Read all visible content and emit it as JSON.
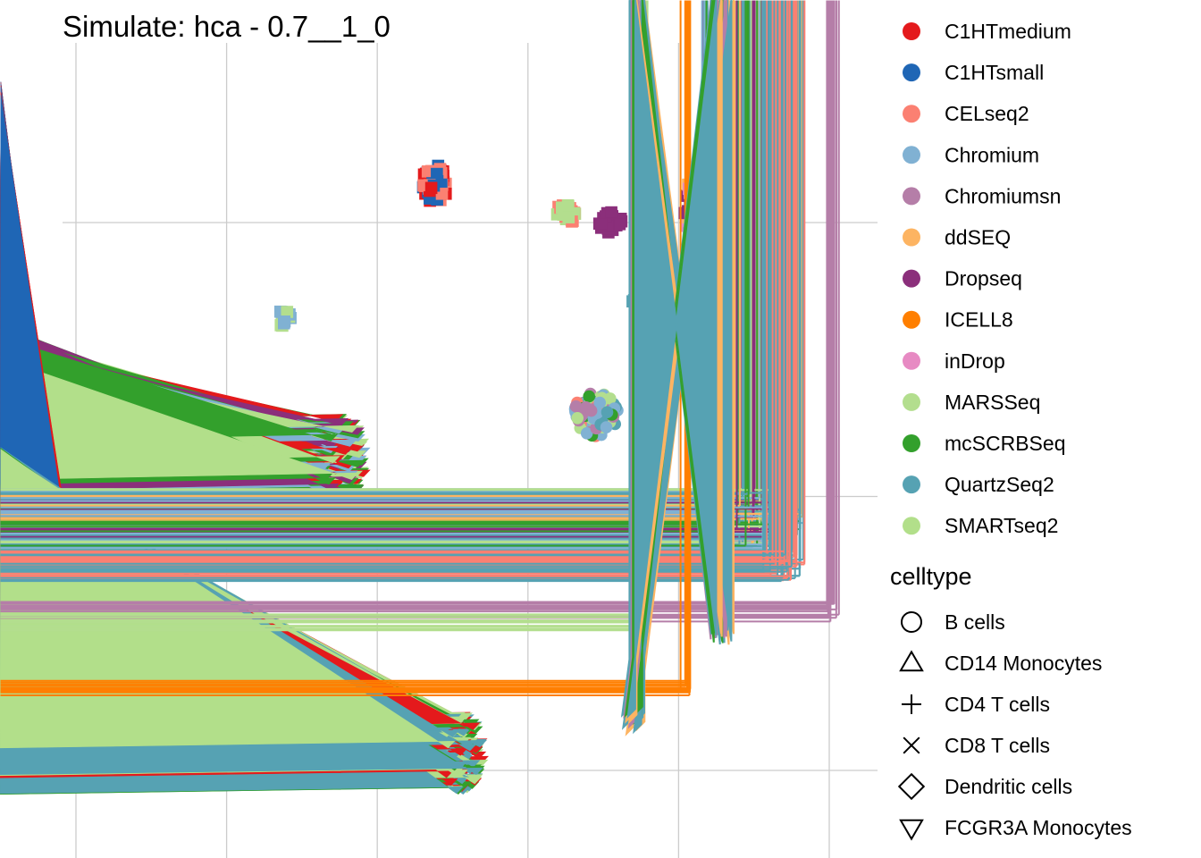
{
  "chart_data": {
    "type": "scatter",
    "title": "Simulate: hca - 0.7__1_0",
    "xlabel": "",
    "ylabel": "",
    "grid": true,
    "axis_ticks_visible": false,
    "xlim": [
      -0.1,
      5.3
    ],
    "ylim": [
      -0.3,
      2.65
    ],
    "x_gridlines": [
      0,
      1,
      2,
      3,
      4,
      5
    ],
    "y_gridlines": [
      0,
      1,
      2
    ],
    "legend_position": "right",
    "color_legend": {
      "title": "",
      "entries": [
        {
          "name": "C1HTmedium",
          "color": "#E41A1C"
        },
        {
          "name": "C1HTsmall",
          "color": "#1F66B5"
        },
        {
          "name": "CELseq2",
          "color": "#FB8072"
        },
        {
          "name": "Chromium",
          "color": "#80B1D3"
        },
        {
          "name": "Chromiumsn",
          "color": "#B57EA8"
        },
        {
          "name": "ddSEQ",
          "color": "#FDB462"
        },
        {
          "name": "Dropseq",
          "color": "#8B2F7B"
        },
        {
          "name": "ICELL8",
          "color": "#FF7F00"
        },
        {
          "name": "inDrop",
          "color": "#E78AC3"
        },
        {
          "name": "MARSSeq",
          "color": "#B3DE8E"
        },
        {
          "name": "mcSCRBSeq",
          "color": "#33A02C"
        },
        {
          "name": "QuartzSeq2",
          "color": "#56A2B3"
        },
        {
          "name": "SMARTseq2",
          "color": "#B2DF8A"
        }
      ]
    },
    "shape_legend": {
      "title": "celltype",
      "entries": [
        {
          "name": "B cells",
          "shape": "circle-open"
        },
        {
          "name": "CD14 Monocytes",
          "shape": "triangle-up-open"
        },
        {
          "name": "CD4 T cells",
          "shape": "plus"
        },
        {
          "name": "CD8 T cells",
          "shape": "cross"
        },
        {
          "name": "Dendritic cells",
          "shape": "diamond-open"
        },
        {
          "name": "FCGR3A Monocytes",
          "shape": "triangle-down-open"
        }
      ]
    },
    "clusters": [
      {
        "x": 2.38,
        "y": 2.14,
        "rx": 0.09,
        "ry": 0.07,
        "series": [
          "C1HTmedium",
          "C1HTsmall",
          "CELseq2"
        ],
        "shape": "square"
      },
      {
        "x": 0.01,
        "y": 1.02,
        "rx": 0.06,
        "ry": 0.04,
        "series": [
          "ICELL8"
        ],
        "shape": "square"
      },
      {
        "x": 1.38,
        "y": 1.65,
        "rx": 0.05,
        "ry": 0.03,
        "series": [
          "Chromium",
          "MARSSeq"
        ],
        "shape": "square"
      },
      {
        "x": 3.25,
        "y": 2.03,
        "rx": 0.07,
        "ry": 0.04,
        "series": [
          "CELseq2",
          "MARSSeq"
        ],
        "shape": "square"
      },
      {
        "x": 3.55,
        "y": 2.0,
        "rx": 0.08,
        "ry": 0.04,
        "series": [
          "Dropseq"
        ],
        "shape": "square"
      },
      {
        "x": 4.1,
        "y": 2.05,
        "rx": 0.06,
        "ry": 0.13,
        "series": [
          "ddSEQ",
          "inDrop",
          "Dropseq"
        ],
        "shape": "square"
      },
      {
        "x": 4.2,
        "y": 1.9,
        "rx": 0.12,
        "ry": 0.04,
        "series": [
          "MARSSeq",
          "mcSCRBSeq"
        ],
        "shape": "square"
      },
      {
        "x": 4.38,
        "y": 2.53,
        "rx": 0.05,
        "ry": 0.03,
        "series": [
          "Chromiumsn"
        ],
        "shape": "square"
      },
      {
        "x": 3.73,
        "y": 1.73,
        "rx": 0.06,
        "ry": 0.04,
        "series": [
          "QuartzSeq2"
        ],
        "shape": "square"
      },
      {
        "x": 4.64,
        "y": 1.41,
        "rx": 0.05,
        "ry": 0.03,
        "series": [
          "ICELL8"
        ],
        "shape": "circle"
      },
      {
        "x": 3.45,
        "y": 1.3,
        "rx": 0.15,
        "ry": 0.08,
        "series": [
          "MARSSeq",
          "mcSCRBSeq",
          "QuartzSeq2",
          "Chromium",
          "CELseq2",
          "Chromiumsn"
        ],
        "shape": "circle"
      },
      {
        "x": -0.06,
        "y": 0.85,
        "rx": 0.05,
        "ry": 0.03,
        "series": [
          "C1HTmedium",
          "C1HTsmall"
        ],
        "shape": "circle"
      },
      {
        "x": 1.8,
        "y": 1.12,
        "rx": 0.16,
        "ry": 0.16,
        "series": [
          "SMARTseq2",
          "mcSCRBSeq",
          "Chromium",
          "C1HTmedium",
          "Dropseq"
        ],
        "shape": "triangle"
      },
      {
        "x": 0.1,
        "y": 0.28,
        "rx": 0.07,
        "ry": 0.06,
        "series": [
          "C1HTmedium",
          "C1HTsmall"
        ],
        "shape": "triangle"
      },
      {
        "x": 2.6,
        "y": 0.05,
        "rx": 0.14,
        "ry": 0.14,
        "series": [
          "SMARTseq2",
          "mcSCRBSeq",
          "QuartzSeq2",
          "C1HTmedium"
        ],
        "shape": "triangle"
      },
      {
        "x": 4.5,
        "y": 0.92,
        "rx": 0.35,
        "ry": 0.11,
        "series": [
          "mcSCRBSeq",
          "Dropseq",
          "MARSSeq",
          "QuartzSeq2",
          "ddSEQ",
          "Chromium"
        ],
        "shape": "plus"
      },
      {
        "x": 4.7,
        "y": 0.75,
        "rx": 0.15,
        "ry": 0.06,
        "series": [
          "QuartzSeq2",
          "CELseq2"
        ],
        "shape": "plus"
      },
      {
        "x": 5.02,
        "y": 0.58,
        "rx": 0.05,
        "ry": 0.04,
        "series": [
          "Chromiumsn"
        ],
        "shape": "plus"
      },
      {
        "x": 3.75,
        "y": 0.54,
        "rx": 0.05,
        "ry": 0.04,
        "series": [
          "MARSSeq"
        ],
        "shape": "plus"
      },
      {
        "x": 4.06,
        "y": 0.3,
        "rx": 0.05,
        "ry": 0.03,
        "series": [
          "ICELL8"
        ],
        "shape": "plus"
      },
      {
        "x": 3.72,
        "y": 0.17,
        "rx": 0.06,
        "ry": 0.05,
        "series": [
          "Chromiumsn",
          "ddSEQ",
          "mcSCRBSeq",
          "QuartzSeq2"
        ],
        "shape": "diamond"
      }
    ]
  }
}
